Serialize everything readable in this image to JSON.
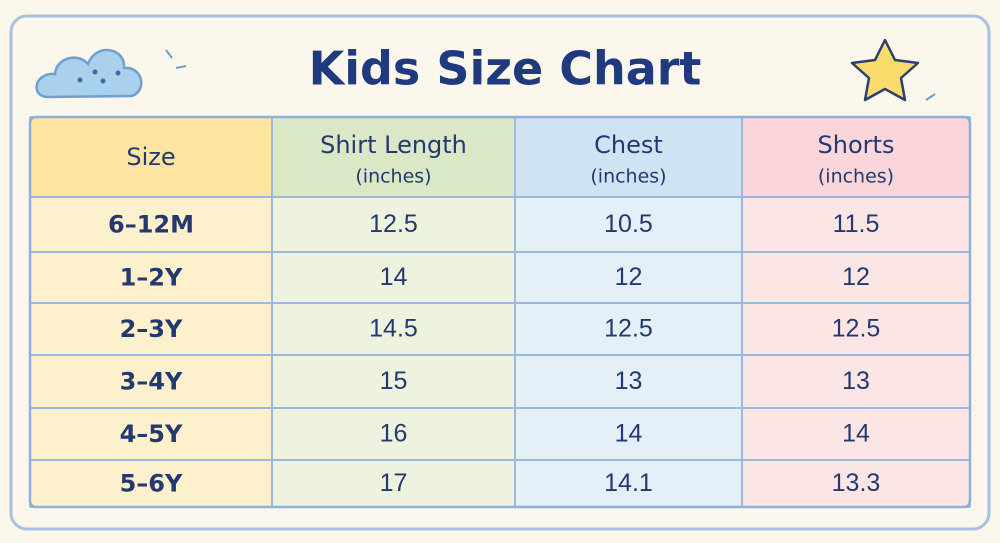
{
  "header": {
    "title": "Kids Size Chart"
  },
  "table": {
    "columns": [
      {
        "name": "Size"
      },
      {
        "name": "Shirt Length",
        "unit": "(inches)"
      },
      {
        "name": "Chest",
        "unit": "(inches)"
      },
      {
        "name": "Shorts",
        "unit": "(inches)"
      }
    ],
    "rows": [
      [
        "6–12M",
        12.5,
        10.5,
        11.5
      ],
      [
        "1–2Y",
        14,
        12,
        12
      ],
      [
        "2–3Y",
        14.5,
        12.5,
        12.5
      ],
      [
        "3–4Y",
        15,
        13,
        13
      ],
      [
        "4–5Y",
        16,
        14,
        14
      ],
      [
        "5–6Y",
        17,
        14.1,
        13.3
      ]
    ]
  }
}
